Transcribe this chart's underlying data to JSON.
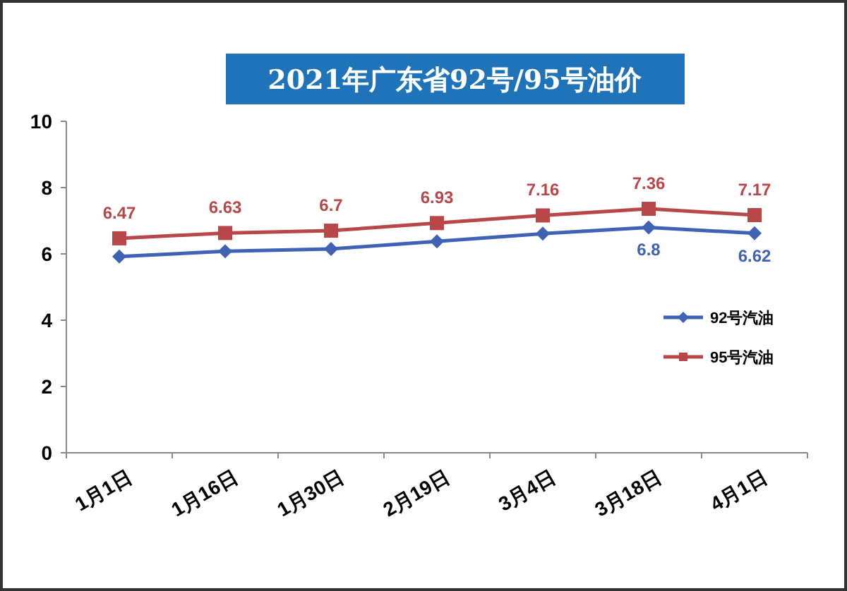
{
  "chart_data": {
    "type": "line",
    "title": "2021年广东省92号/95号油价",
    "categories": [
      "1月1日",
      "1月16日",
      "1月30日",
      "2月19日",
      "3月4日",
      "3月18日",
      "4月1日"
    ],
    "series": [
      {
        "name": "92号汽油",
        "color": "#3f62b4",
        "marker": "diamond",
        "values": [
          5.92,
          6.08,
          6.15,
          6.38,
          6.61,
          6.8,
          6.62
        ],
        "value_labels": [
          null,
          null,
          null,
          null,
          null,
          "6.8",
          "6.62"
        ]
      },
      {
        "name": "95号汽油",
        "color": "#b8474a",
        "marker": "square",
        "values": [
          6.47,
          6.63,
          6.7,
          6.93,
          7.16,
          7.36,
          7.17
        ],
        "value_labels": [
          "6.47",
          "6.63",
          "6.7",
          "6.93",
          "7.16",
          "7.36",
          "7.17"
        ]
      }
    ],
    "ylim": [
      0,
      10
    ],
    "yticks": [
      0,
      2,
      4,
      6,
      8,
      10
    ],
    "grid": false,
    "legend": "right",
    "line_style": "solid"
  }
}
